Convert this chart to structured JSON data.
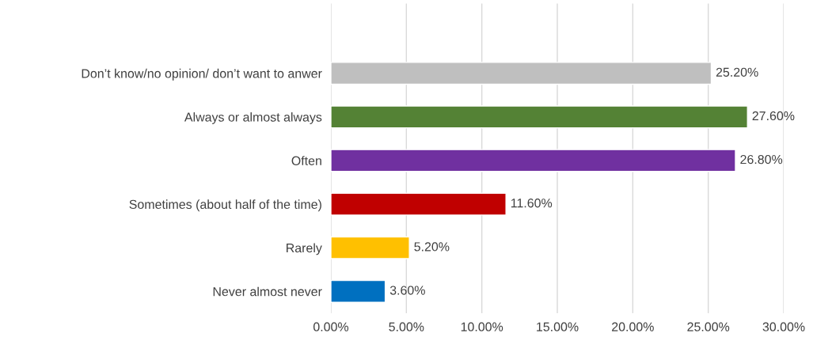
{
  "chart_data": {
    "type": "bar",
    "orientation": "horizontal",
    "categories": [
      "Don’t know/no opinion/ don’t want to anwer",
      "Always or almost always",
      "Often",
      "Sometimes (about half of the time)",
      "Rarely",
      "Never almost never"
    ],
    "values": [
      25.2,
      27.6,
      26.8,
      11.6,
      5.2,
      3.6
    ],
    "colors": [
      "#bfbfbf",
      "#548235",
      "#7030a0",
      "#c00000",
      "#ffc000",
      "#0070c0"
    ],
    "value_labels": [
      "25.20%",
      "27.60%",
      "26.80%",
      "11.60%",
      "5.20%",
      "3.60%"
    ],
    "xlim": [
      0,
      30
    ],
    "xticks": [
      {
        "value": 0,
        "label": "0.00%"
      },
      {
        "value": 5,
        "label": "5.00%"
      },
      {
        "value": 10,
        "label": "10.00%"
      },
      {
        "value": 15,
        "label": "15.00%"
      },
      {
        "value": 20,
        "label": "20.00%"
      },
      {
        "value": 25,
        "label": "25.00%"
      },
      {
        "value": 30,
        "label": "30.00%"
      }
    ],
    "grid": "x",
    "legend": false
  }
}
